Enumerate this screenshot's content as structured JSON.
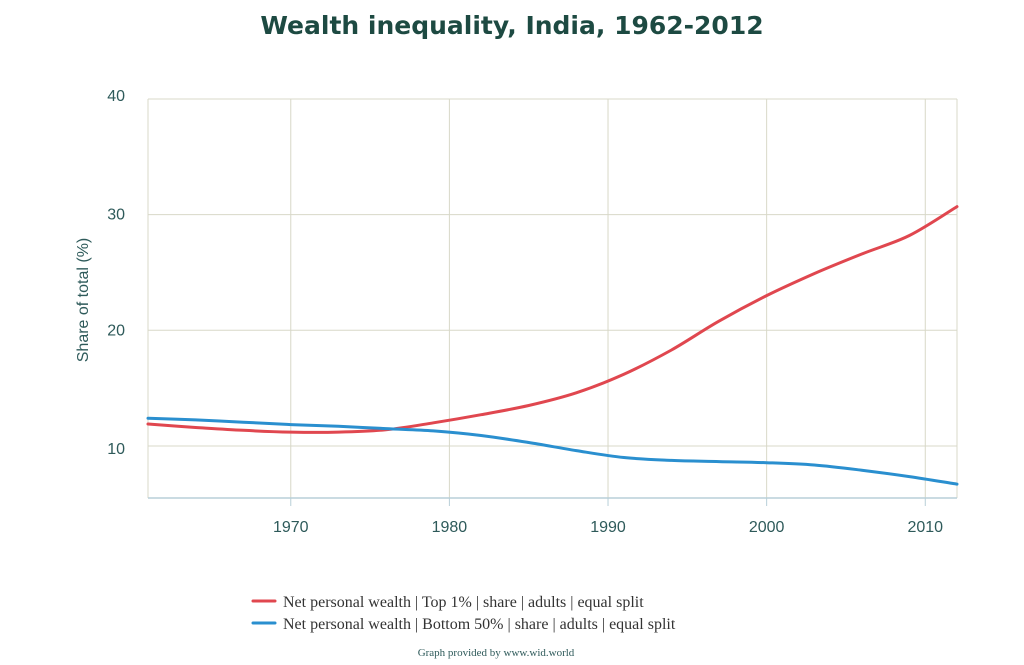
{
  "colors": {
    "top1": "#e0474f",
    "bottom50": "#2a8fcf",
    "grid": "#d8d8c8",
    "axis": "#b8cfd8",
    "text": "#2e5a5a",
    "title": "#1d4a42"
  },
  "credit": "Graph provided by www.wid.world",
  "chart_data": {
    "type": "line",
    "title": "Wealth inequality, India, 1962-2012",
    "xlabel": "",
    "ylabel": "Share of total (%)",
    "xlim": [
      1961,
      2012
    ],
    "ylim": [
      5.5,
      40
    ],
    "x_ticks": [
      1970,
      1980,
      1990,
      2000,
      2010
    ],
    "y_ticks": [
      10,
      20,
      30,
      40
    ],
    "grid": true,
    "legend_position": "bottom",
    "series": [
      {
        "name": "Net personal wealth | Top 1% | share | adults | equal split",
        "color": "#e0474f",
        "points": [
          [
            1961,
            11.9
          ],
          [
            1964,
            11.6
          ],
          [
            1967,
            11.35
          ],
          [
            1970,
            11.2
          ],
          [
            1973,
            11.2
          ],
          [
            1976,
            11.4
          ],
          [
            1979,
            12.0
          ],
          [
            1982,
            12.7
          ],
          [
            1985,
            13.5
          ],
          [
            1988,
            14.6
          ],
          [
            1991,
            16.2
          ],
          [
            1994,
            18.3
          ],
          [
            1997,
            20.8
          ],
          [
            2000,
            23.0
          ],
          [
            2003,
            24.9
          ],
          [
            2006,
            26.6
          ],
          [
            2009,
            28.2
          ],
          [
            2012,
            30.7
          ]
        ]
      },
      {
        "name": "Net personal wealth | Bottom 50% | share | adults | equal split",
        "color": "#2a8fcf",
        "points": [
          [
            1961,
            12.4
          ],
          [
            1964,
            12.25
          ],
          [
            1967,
            12.05
          ],
          [
            1970,
            11.85
          ],
          [
            1973,
            11.7
          ],
          [
            1976,
            11.5
          ],
          [
            1979,
            11.3
          ],
          [
            1982,
            10.9
          ],
          [
            1985,
            10.3
          ],
          [
            1988,
            9.6
          ],
          [
            1991,
            9.0
          ],
          [
            1994,
            8.75
          ],
          [
            1997,
            8.65
          ],
          [
            2000,
            8.55
          ],
          [
            2003,
            8.35
          ],
          [
            2006,
            7.9
          ],
          [
            2009,
            7.35
          ],
          [
            2012,
            6.7
          ]
        ]
      }
    ]
  }
}
